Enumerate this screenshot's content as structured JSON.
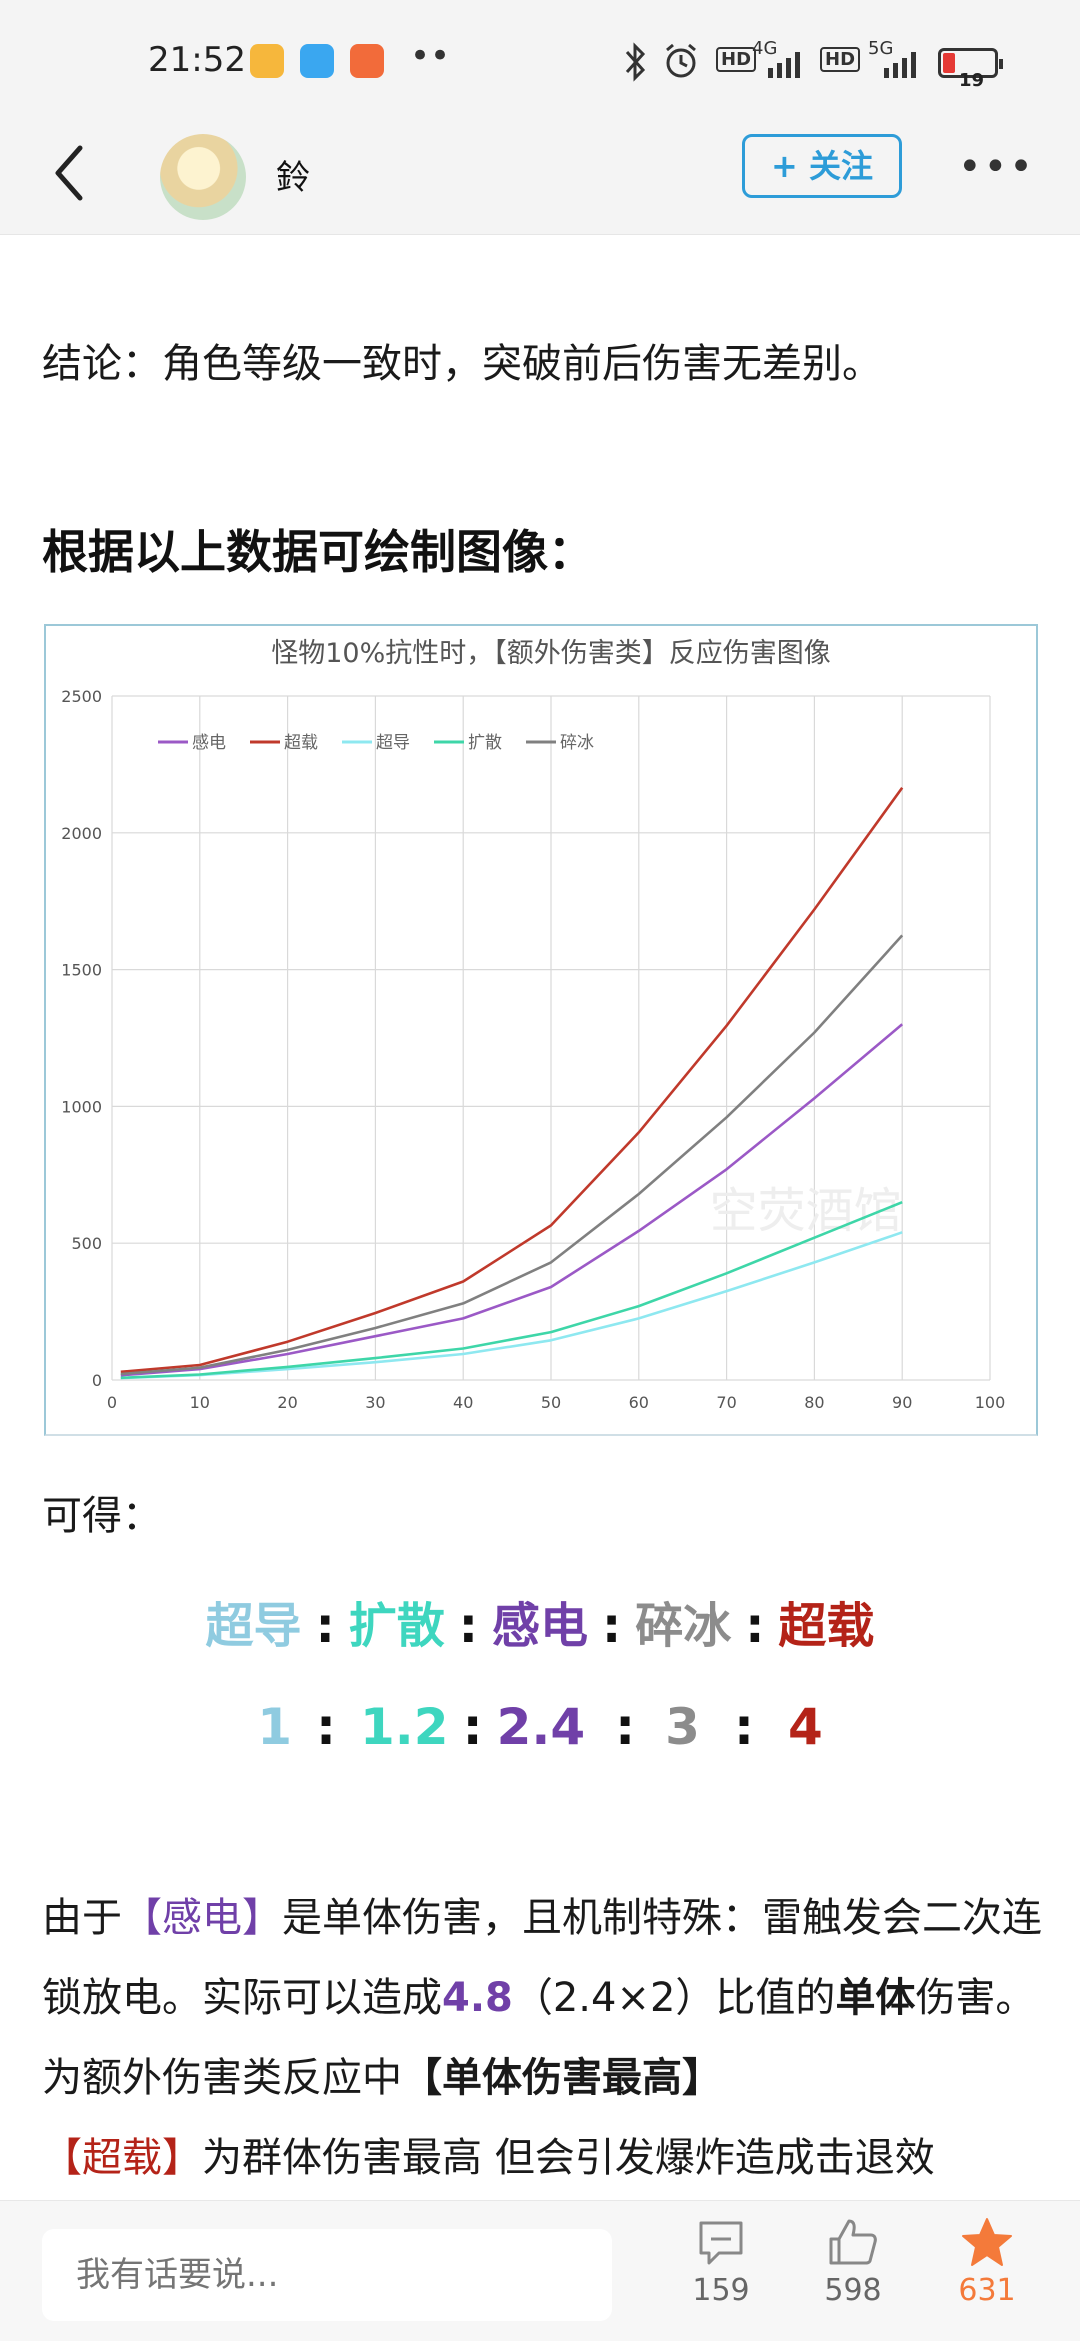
{
  "status_bar": {
    "time": "21:52",
    "network_1": "4G",
    "network_2": "5G",
    "hd_label": "HD",
    "battery": "19",
    "dots": "••",
    "icons": [
      "note-app-icon",
      "chat-app-icon",
      "mi-store-icon",
      "bluetooth-icon",
      "alarm-icon"
    ]
  },
  "nav": {
    "author": "鈴",
    "follow_label": "+ 关注",
    "more_label": "•••"
  },
  "article": {
    "conclusion": "结论：角色等级一致时，突破前后伤害无差别。",
    "heading": "根据以上数据可绘制图像：",
    "result_intro": "可得：",
    "ratio_names": [
      "超导",
      "扩散",
      "感电",
      "碎冰",
      "超载"
    ],
    "ratio_values": [
      "1",
      "1.2",
      "2.4",
      "3",
      "4"
    ],
    "colon": ":",
    "para_1": "由于",
    "para_ec": "【感电】",
    "para_2": "是单体伤害，且机制特殊：雷触发会二次连锁放电。实际可以造成",
    "para_value": "4.8",
    "para_3": "（2.4×2）比值的",
    "para_bold_1": "单体",
    "para_4": "伤害。为额外伤害类反应中",
    "para_bold_2": "【单体伤害最高】",
    "para_over": "【超载】",
    "para_5": "为群体伤害最高 但会引发爆炸造成击退效"
  },
  "chart_data": {
    "type": "line",
    "title": "怪物10%抗性时，【额外伤害类】反应伤害图像",
    "xlabel": "",
    "ylabel": "",
    "xlim": [
      0,
      100
    ],
    "ylim": [
      0,
      2500
    ],
    "x_ticks": [
      0,
      10,
      20,
      30,
      40,
      50,
      60,
      70,
      80,
      90,
      100
    ],
    "y_ticks": [
      0,
      500,
      1000,
      1500,
      2000,
      2500
    ],
    "grid": true,
    "legend_position": "top-left",
    "watermark": "空荧酒馆",
    "x": [
      1,
      10,
      20,
      30,
      40,
      50,
      60,
      70,
      80,
      90
    ],
    "series": [
      {
        "name": "感电",
        "color": "#9b59c6",
        "values": [
          17,
          40,
          95,
          160,
          225,
          340,
          545,
          770,
          1030,
          1300
        ]
      },
      {
        "name": "超载",
        "color": "#c0392b",
        "values": [
          30,
          55,
          140,
          245,
          360,
          565,
          905,
          1295,
          1720,
          2165
        ]
      },
      {
        "name": "超导",
        "color": "#8ee8f0",
        "values": [
          7,
          18,
          40,
          65,
          95,
          145,
          225,
          325,
          430,
          540
        ]
      },
      {
        "name": "扩散",
        "color": "#3ed6a8",
        "values": [
          8,
          20,
          48,
          80,
          115,
          175,
          270,
          390,
          520,
          650
        ]
      },
      {
        "name": "碎冰",
        "color": "#808080",
        "values": [
          22,
          45,
          110,
          190,
          280,
          430,
          680,
          960,
          1270,
          1625
        ]
      }
    ]
  },
  "bottom": {
    "comment_placeholder": "我有话要说...",
    "comments_count": "159",
    "likes_count": "598",
    "favorites_count": "631"
  }
}
